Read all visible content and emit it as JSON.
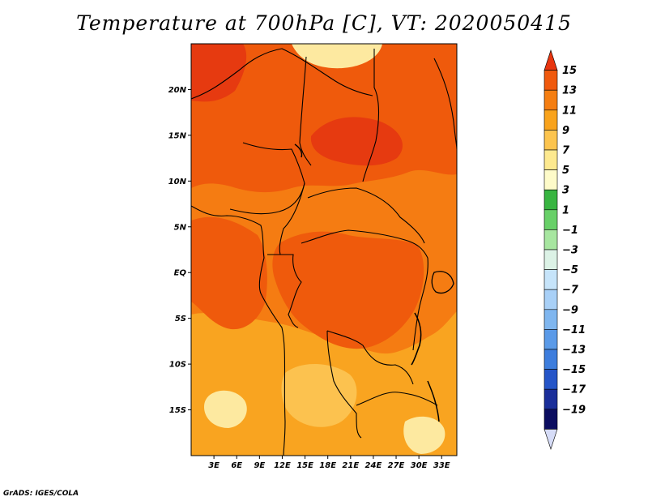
{
  "title": "Temperature at 700hPa [C], VT: 2020050415",
  "credit": "GrADS: IGES/COLA",
  "map": {
    "lon_range": [
      0,
      35
    ],
    "lat_range": [
      -20,
      25
    ],
    "lat_ticks": [
      {
        "label": "20N",
        "value": 20
      },
      {
        "label": "15N",
        "value": 15
      },
      {
        "label": "10N",
        "value": 10
      },
      {
        "label": "5N",
        "value": 5
      },
      {
        "label": "EQ",
        "value": 0
      },
      {
        "label": "5S",
        "value": -5
      },
      {
        "label": "10S",
        "value": -10
      },
      {
        "label": "15S",
        "value": -15
      }
    ],
    "lon_ticks": [
      {
        "label": "3E",
        "value": 3
      },
      {
        "label": "6E",
        "value": 6
      },
      {
        "label": "9E",
        "value": 9
      },
      {
        "label": "12E",
        "value": 12
      },
      {
        "label": "15E",
        "value": 15
      },
      {
        "label": "18E",
        "value": 18
      },
      {
        "label": "21E",
        "value": 21
      },
      {
        "label": "24E",
        "value": 24
      },
      {
        "label": "27E",
        "value": 27
      },
      {
        "label": "30E",
        "value": 30
      },
      {
        "label": "33E",
        "value": 33
      }
    ],
    "field_colors": {
      "c5": "#fde9a0",
      "c7": "#fcc24f",
      "c9": "#f9a420",
      "c11": "#f57c12",
      "c13": "#ef5a0c",
      "c15": "#e63a10"
    }
  },
  "colorbar": {
    "labels": [
      "15",
      "13",
      "11",
      "9",
      "7",
      "5",
      "3",
      "1",
      "−1",
      "−3",
      "−5",
      "−7",
      "−9",
      "−11",
      "−13",
      "−15",
      "−17",
      "−19"
    ],
    "colors": [
      "#e8350f",
      "#f0590d",
      "#f57e11",
      "#f9a31c",
      "#fcc44e",
      "#fde98f",
      "#fefbc9",
      "#38b541",
      "#68d068",
      "#a7e6a0",
      "#dcf2e6",
      "#c6e4fa",
      "#a8d0f7",
      "#7fb6ef",
      "#5a9ae8",
      "#3d7ddd",
      "#2555c8",
      "#1a2e9a",
      "#0b0d60",
      "#d6dcf7"
    ]
  }
}
